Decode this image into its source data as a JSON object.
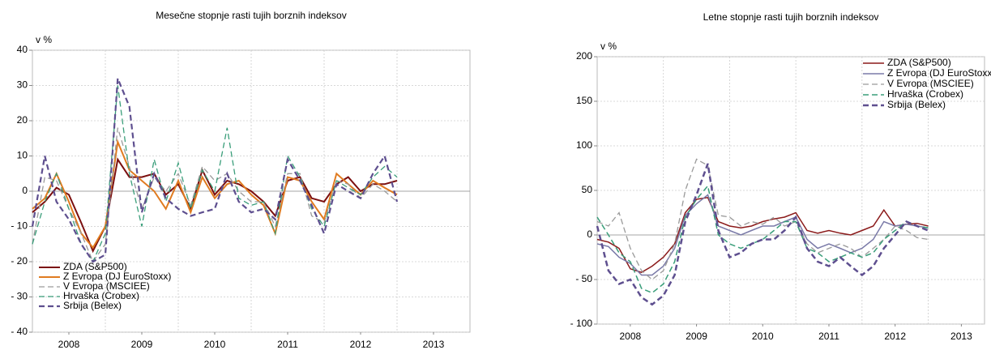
{
  "chart_data": [
    {
      "type": "line",
      "title": "Mesečne stopnje rasti tujih borznih indeksov",
      "y_unit": "v %",
      "x": [
        2008,
        2008.17,
        2008.33,
        2008.5,
        2008.67,
        2008.83,
        2009,
        2009.17,
        2009.33,
        2009.5,
        2009.67,
        2009.83,
        2010,
        2010.17,
        2010.33,
        2010.5,
        2010.67,
        2010.83,
        2011,
        2011.17,
        2011.33,
        2011.5,
        2011.67,
        2011.83,
        2012,
        2012.17,
        2012.33,
        2012.5,
        2012.67,
        2012.83,
        2013
      ],
      "xlim": [
        2008,
        2014
      ],
      "xticks": [
        {
          "value": 2008.5,
          "label": "2008"
        },
        {
          "value": 2009.5,
          "label": "2009"
        },
        {
          "value": 2010.5,
          "label": "2010"
        },
        {
          "value": 2011.5,
          "label": "2011"
        },
        {
          "value": 2012.5,
          "label": "2012"
        },
        {
          "value": 2013.5,
          "label": "2013"
        }
      ],
      "ylim": [
        -40,
        40
      ],
      "yticks": [
        {
          "value": -40,
          "label": "- 40"
        },
        {
          "value": -30,
          "label": "- 30"
        },
        {
          "value": -20,
          "label": "- 20"
        },
        {
          "value": -10,
          "label": "- 10"
        },
        0,
        10,
        20,
        30,
        40
      ],
      "grid": true,
      "legend": "lower-left",
      "series": [
        {
          "name": "ZDA (S&P500)",
          "color": "#7b0f0f",
          "dashed": false,
          "line_width": 2,
          "values": [
            -6,
            -3,
            1,
            -1,
            -9,
            -17,
            -10,
            9,
            4,
            4,
            5,
            -1,
            2,
            -5,
            6,
            -1,
            3,
            2,
            0,
            -3,
            -7,
            3,
            4,
            -2,
            -3,
            2,
            4,
            0,
            2,
            2,
            3
          ]
        },
        {
          "name": "Z Evropa (DJ EuroStoxx)",
          "color": "#e07b20",
          "dashed": false,
          "line_width": 2,
          "values": [
            -5,
            -2,
            5,
            -3,
            -12,
            -16,
            -10,
            14,
            6,
            3,
            0,
            -5,
            3,
            -6,
            4,
            -2,
            2,
            3,
            -1,
            -4,
            -12,
            4,
            3,
            -3,
            -8,
            5,
            2,
            -1,
            3,
            1,
            -1
          ]
        },
        {
          "name": "V Evropa (MSCIEE)",
          "color": "#9a9a9a",
          "dashed": true,
          "line_width": 1.3,
          "values": [
            -15,
            4,
            3,
            -5,
            -12,
            -20,
            -15,
            18,
            7,
            -5,
            4,
            0,
            5,
            -4,
            7,
            3,
            5,
            0,
            -3,
            -3,
            -10,
            5,
            5,
            -7,
            -9,
            3,
            2,
            -2,
            2,
            0,
            -3
          ]
        },
        {
          "name": "Hrvaška (Crobex)",
          "color": "#3a9e7a",
          "dashed": true,
          "line_width": 1.3,
          "values": [
            -15,
            -3,
            5,
            -5,
            -15,
            -20,
            -12,
            30,
            5,
            -10,
            9,
            -3,
            8,
            -5,
            6,
            0,
            18,
            -2,
            -4,
            -3,
            -12,
            10,
            4,
            -5,
            -10,
            3,
            1,
            -1,
            4,
            7,
            4
          ]
        },
        {
          "name": "Srbija (Belex)",
          "color": "#5e4f8f",
          "dashed": true,
          "line_width": 2.2,
          "values": [
            -10,
            10,
            -3,
            -8,
            -15,
            -20,
            -18,
            32,
            24,
            -6,
            5,
            -2,
            -5,
            -7,
            -6,
            -5,
            5,
            -3,
            -6,
            -5,
            -8,
            9,
            3,
            -4,
            -12,
            2,
            0,
            -2,
            5,
            10,
            -3
          ]
        }
      ]
    },
    {
      "type": "line",
      "title": "Letne stopnje rasti tujih borznih indeksov",
      "y_unit": "v %",
      "x": [
        2008,
        2008.17,
        2008.33,
        2008.5,
        2008.67,
        2008.83,
        2009,
        2009.17,
        2009.33,
        2009.5,
        2009.67,
        2009.83,
        2010,
        2010.17,
        2010.33,
        2010.5,
        2010.67,
        2010.83,
        2011,
        2011.17,
        2011.33,
        2011.5,
        2011.67,
        2011.83,
        2012,
        2012.17,
        2012.33,
        2012.5,
        2012.67,
        2012.83,
        2013
      ],
      "xlim": [
        2008,
        2013.85
      ],
      "xticks": [
        {
          "value": 2008.5,
          "label": "2008"
        },
        {
          "value": 2009.5,
          "label": "2009"
        },
        {
          "value": 2010.5,
          "label": "2010"
        },
        {
          "value": 2011.5,
          "label": "2011"
        },
        {
          "value": 2012.5,
          "label": "2012"
        },
        {
          "value": 2013.5,
          "label": "2013"
        }
      ],
      "ylim": [
        -100,
        200
      ],
      "yticks": [
        {
          "value": -100,
          "label": "- 100"
        },
        {
          "value": -50,
          "label": "- 50"
        },
        0,
        50,
        100,
        150,
        200
      ],
      "grid": true,
      "legend": "upper-right",
      "series": [
        {
          "name": "ZDA (S&P500)",
          "color": "#8b1a1a",
          "dashed": false,
          "line_width": 1.5,
          "values": [
            -5,
            -8,
            -15,
            -38,
            -42,
            -35,
            -25,
            -10,
            25,
            40,
            42,
            15,
            10,
            8,
            10,
            15,
            18,
            20,
            25,
            5,
            2,
            5,
            2,
            0,
            5,
            10,
            28,
            10,
            12,
            13,
            10
          ]
        },
        {
          "name": "Z Evropa (DJ EuroStoxx)",
          "color": "#7a7aa8",
          "dashed": false,
          "line_width": 1.5,
          "values": [
            -10,
            -13,
            -25,
            -32,
            -45,
            -45,
            -35,
            -15,
            22,
            35,
            45,
            10,
            5,
            0,
            5,
            10,
            10,
            15,
            20,
            -5,
            -15,
            -10,
            -15,
            -20,
            -15,
            -5,
            15,
            10,
            12,
            10,
            8
          ]
        },
        {
          "name": "V Evropa (MSCIEE)",
          "color": "#9a9a9a",
          "dashed": true,
          "line_width": 1.3,
          "values": [
            15,
            10,
            25,
            -15,
            -40,
            -50,
            -40,
            -10,
            50,
            85,
            78,
            22,
            20,
            10,
            15,
            12,
            20,
            10,
            15,
            -10,
            -20,
            -15,
            -10,
            -15,
            -25,
            -15,
            -5,
            10,
            5,
            -3,
            -5
          ]
        },
        {
          "name": "Hrvaška (Crobex)",
          "color": "#3a9e7a",
          "dashed": true,
          "line_width": 1.5,
          "values": [
            20,
            0,
            -20,
            -30,
            -60,
            -65,
            -55,
            -30,
            20,
            40,
            55,
            0,
            -10,
            -15,
            -10,
            -5,
            5,
            15,
            15,
            -15,
            -20,
            -30,
            -25,
            -20,
            -25,
            -20,
            -5,
            5,
            15,
            10,
            8
          ]
        },
        {
          "name": "Srbija (Belex)",
          "color": "#5e4f8f",
          "dashed": true,
          "line_width": 2.5,
          "values": [
            10,
            -40,
            -55,
            -50,
            -70,
            -78,
            -68,
            -45,
            15,
            45,
            80,
            5,
            -25,
            -20,
            -10,
            -5,
            -5,
            5,
            20,
            -15,
            -30,
            -35,
            -25,
            -35,
            -45,
            -35,
            -15,
            0,
            15,
            10,
            5
          ]
        }
      ]
    }
  ]
}
